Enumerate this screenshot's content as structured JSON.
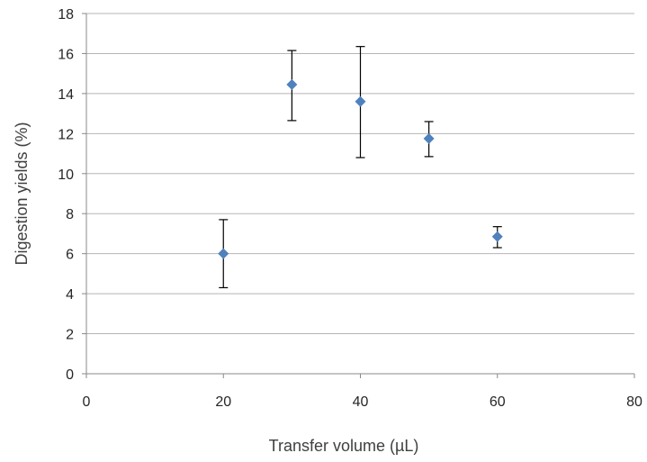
{
  "chart_data": {
    "type": "scatter",
    "xlabel": "Transfer volume (µL)",
    "ylabel": "Digestion yields (%)",
    "xlim": [
      0,
      80
    ],
    "ylim": [
      0,
      18
    ],
    "x_ticks": [
      0,
      20,
      40,
      60,
      80
    ],
    "y_ticks": [
      0,
      2,
      4,
      6,
      8,
      10,
      12,
      14,
      16,
      18
    ],
    "grid": "horizontal",
    "legend": "none",
    "marker": "diamond",
    "marker_color": "#4f81bd",
    "series": [
      {
        "points": [
          {
            "x": 20,
            "y": 6.0,
            "y_low": 4.3,
            "y_high": 7.7
          },
          {
            "x": 30,
            "y": 14.45,
            "y_low": 12.65,
            "y_high": 16.15
          },
          {
            "x": 40,
            "y": 13.6,
            "y_low": 10.8,
            "y_high": 16.35
          },
          {
            "x": 50,
            "y": 11.75,
            "y_low": 10.85,
            "y_high": 12.6
          },
          {
            "x": 60,
            "y": 6.85,
            "y_low": 6.3,
            "y_high": 7.35
          }
        ]
      }
    ]
  }
}
